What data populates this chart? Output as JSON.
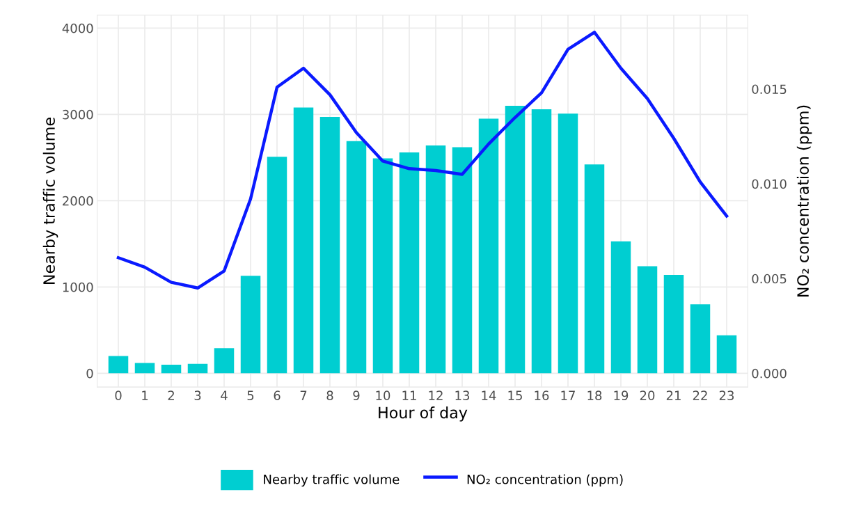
{
  "chart_data": {
    "type": "bar",
    "xlabel": "Hour of day",
    "ylabel": "Nearby traffic volume",
    "y2label": "NO₂ concentration (ppm)",
    "categories": [
      "0",
      "1",
      "2",
      "3",
      "4",
      "5",
      "6",
      "7",
      "8",
      "9",
      "10",
      "11",
      "12",
      "13",
      "14",
      "15",
      "16",
      "17",
      "18",
      "19",
      "20",
      "21",
      "22",
      "23"
    ],
    "series": [
      {
        "name": "Nearby traffic volume",
        "color": "#00ced1",
        "values": [
          200,
          120,
          100,
          110,
          290,
          1130,
          2510,
          3080,
          2970,
          2690,
          2490,
          2560,
          2640,
          2620,
          2950,
          3100,
          3060,
          3010,
          2420,
          1530,
          1240,
          1140,
          800,
          440
        ]
      },
      {
        "name": "NO₂ concentration (ppm)",
        "type": "line",
        "axis": "y2",
        "color": "#0a1aff",
        "values": [
          0.0061,
          0.0056,
          0.0048,
          0.0045,
          0.0054,
          0.0092,
          0.0151,
          0.0161,
          0.0147,
          0.0127,
          0.0112,
          0.0108,
          0.0107,
          0.0105,
          0.0121,
          0.0135,
          0.0148,
          0.0171,
          0.018,
          0.0161,
          0.0145,
          0.0124,
          0.0101,
          0.0083
        ]
      }
    ],
    "ylim": [
      -160,
      4150
    ],
    "yticks": [
      0,
      1000,
      2000,
      3000,
      4000
    ],
    "y2lim": [
      -0.00073,
      0.0189
    ],
    "y2ticks": [
      {
        "value": 0,
        "label": "0.000"
      },
      {
        "value": 0.005,
        "label": "0.005"
      },
      {
        "value": 0.01,
        "label": "0.010"
      },
      {
        "value": 0.015,
        "label": "0.015"
      }
    ],
    "grid": true,
    "legend": "bottom",
    "marker": "none",
    "line_style": "solid"
  }
}
